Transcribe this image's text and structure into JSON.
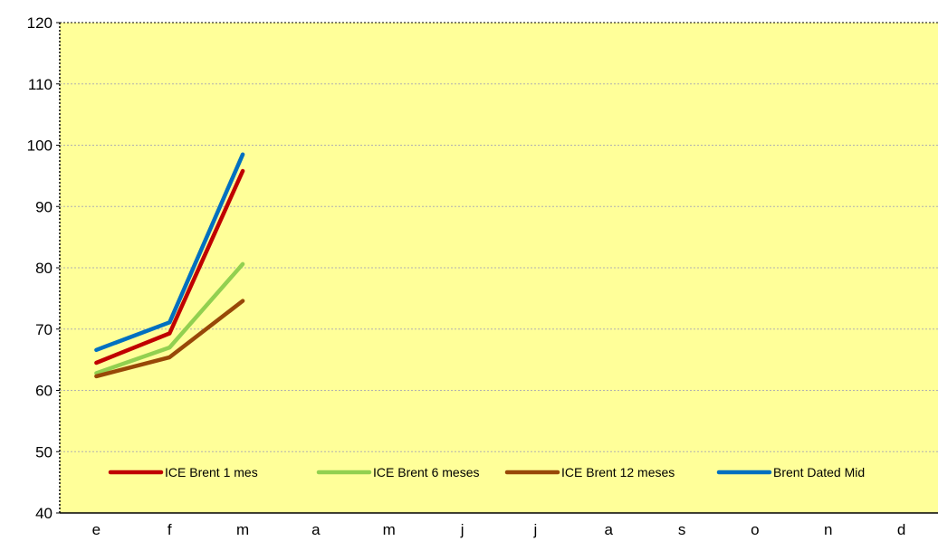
{
  "chart_data": {
    "type": "line",
    "title": "",
    "xlabel": "",
    "ylabel": "",
    "categories": [
      "e",
      "f",
      "m",
      "a",
      "m",
      "j",
      "j",
      "a",
      "s",
      "o",
      "n",
      "d"
    ],
    "ylim": [
      40,
      120
    ],
    "yticks": [
      40,
      50,
      60,
      70,
      80,
      90,
      100,
      110,
      120
    ],
    "grid": true,
    "legend_position": "bottom",
    "plot_background": "#FFFF99",
    "series": [
      {
        "name": "ICE Brent 1 mes",
        "color": "#C00000",
        "values": [
          64.5,
          69.3,
          95.8,
          null,
          null,
          null,
          null,
          null,
          null,
          null,
          null,
          null
        ]
      },
      {
        "name": "ICE Brent 6 meses",
        "color": "#92D050",
        "values": [
          62.8,
          67.0,
          80.6,
          null,
          null,
          null,
          null,
          null,
          null,
          null,
          null,
          null
        ]
      },
      {
        "name": "ICE Brent 12 meses",
        "color": "#984807",
        "values": [
          62.3,
          65.4,
          74.6,
          null,
          null,
          null,
          null,
          null,
          null,
          null,
          null,
          null
        ]
      },
      {
        "name": "Brent Dated Mid",
        "color": "#0070C0",
        "values": [
          66.6,
          71.1,
          98.5,
          null,
          null,
          null,
          null,
          null,
          null,
          null,
          null,
          null
        ]
      }
    ]
  }
}
